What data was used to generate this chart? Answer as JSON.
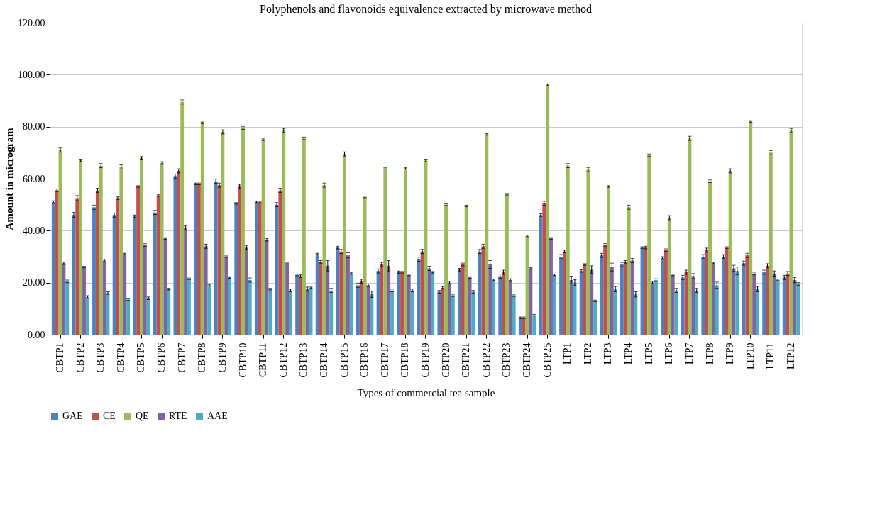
{
  "chart_data": {
    "type": "bar",
    "title": "Polyphenols and flavonoids equivalence extracted by microwave method",
    "xlabel": "Types of commercial tea sample",
    "ylabel": "Amount in microgram",
    "categories": [
      "CBTP1",
      "CBTP2",
      "CBTP3",
      "CBTP4",
      "CBTP5",
      "CBTP6",
      "CBTP7",
      "CBTP8",
      "CBTP9",
      "CBTP10",
      "CBTP11",
      "CBTP12",
      "CBTP13",
      "CBTP14",
      "CBTP15",
      "CBTP16",
      "CBTP17",
      "CBTP18",
      "CBTP19",
      "CBTP20",
      "CBTP21",
      "CBTP22",
      "CBTP23",
      "CBTP24",
      "CBTP25",
      "LTP1",
      "LTP2",
      "LTP3",
      "LTP4",
      "LTP5",
      "LTP6",
      "LTP7",
      "LTP8",
      "LTP9",
      "LTP10",
      "LTP11",
      "LTP12"
    ],
    "series": [
      {
        "name": "GAE",
        "color": "#4f81bd",
        "values": [
          51,
          46,
          49,
          46,
          45.5,
          47,
          61,
          58,
          59,
          50.5,
          51,
          50,
          23,
          31,
          33.5,
          19,
          24.5,
          24,
          29,
          16.5,
          25,
          32,
          22.5,
          6.5,
          46,
          30,
          24.5,
          30.5,
          27,
          33.5,
          29.5,
          22,
          30,
          30,
          27.5,
          24,
          22
        ],
        "errors": [
          0.5,
          1,
          0.8,
          0.8,
          0.5,
          0.8,
          0.8,
          0.3,
          0.8,
          0.3,
          0.3,
          0.8,
          0.3,
          0.3,
          0.5,
          0.8,
          0.8,
          0.5,
          0.8,
          0.5,
          0.5,
          0.8,
          0.8,
          0.3,
          0.5,
          0.8,
          0.5,
          0.8,
          0.8,
          0.3,
          0.5,
          0.8,
          0.8,
          0.8,
          0.8,
          0.8,
          0.8
        ]
      },
      {
        "name": "CE",
        "color": "#c0504d",
        "values": [
          55.5,
          52.5,
          55.5,
          52.5,
          57,
          53.5,
          63,
          58,
          57.5,
          57,
          51,
          55.5,
          22.5,
          28,
          32,
          20.5,
          27,
          24,
          32,
          18,
          27,
          34,
          24,
          6.5,
          50.5,
          32,
          27,
          34.5,
          28,
          33.5,
          32.5,
          24,
          32.5,
          33.5,
          30.5,
          26.5,
          23.5
        ],
        "errors": [
          0.5,
          1,
          0.8,
          0.5,
          0.3,
          0.3,
          0.8,
          0.3,
          0.8,
          0.8,
          0.3,
          0.8,
          0.5,
          0.5,
          0.8,
          0.8,
          0.8,
          0.3,
          0.8,
          0.5,
          0.5,
          0.8,
          0.8,
          0.3,
          0.8,
          0.5,
          0.3,
          0.5,
          0.5,
          0.5,
          0.5,
          0.8,
          0.8,
          0.3,
          0.8,
          0.8,
          0.8
        ]
      },
      {
        "name": "QE",
        "color": "#9bbb59",
        "values": [
          71,
          67,
          65,
          64.5,
          68,
          66,
          89.5,
          81.5,
          78,
          79.5,
          75,
          78.5,
          75.5,
          57.5,
          69.5,
          53,
          64,
          64,
          67,
          50,
          49.5,
          77,
          54,
          38,
          96,
          65,
          63.5,
          57,
          49,
          69,
          45,
          75.5,
          59,
          63,
          82,
          70,
          78.5
        ],
        "errors": [
          0.8,
          0.5,
          0.8,
          0.8,
          0.5,
          0.5,
          0.8,
          0.3,
          0.8,
          0.5,
          0.3,
          0.8,
          0.5,
          0.8,
          0.8,
          0.3,
          0.3,
          0.3,
          0.5,
          0.3,
          0.3,
          0.3,
          0.3,
          0.3,
          0.3,
          0.8,
          0.8,
          0.3,
          0.8,
          0.5,
          0.8,
          0.8,
          0.5,
          0.8,
          0.3,
          0.8,
          0.8
        ]
      },
      {
        "name": "RTE",
        "color": "#8064a2",
        "values": [
          27.5,
          26,
          28.5,
          31,
          34.5,
          37,
          41,
          34,
          30,
          33.5,
          36.5,
          27.5,
          17.5,
          26.5,
          30.5,
          19,
          26.5,
          23,
          25.5,
          20,
          22,
          27,
          21,
          25.5,
          37.5,
          21,
          25,
          26,
          28.5,
          20,
          23,
          22.5,
          27.5,
          25.5,
          23.5,
          23.5,
          21
        ],
        "errors": [
          0.5,
          0.3,
          0.5,
          0.3,
          0.5,
          0.3,
          0.8,
          0.8,
          0.3,
          0.8,
          0.5,
          0.3,
          0.8,
          2,
          1,
          0.5,
          2,
          0.3,
          0.8,
          0.5,
          0.3,
          1.5,
          0.5,
          0.3,
          0.8,
          1.5,
          1.5,
          1.5,
          0.8,
          0.5,
          0.3,
          1,
          0.3,
          1.2,
          0.5,
          1,
          1
        ]
      },
      {
        "name": "AAE",
        "color": "#4bacc6",
        "values": [
          20.5,
          14.5,
          16,
          13.5,
          14,
          17.5,
          21.5,
          19,
          22,
          21,
          17.5,
          17,
          18,
          17,
          23.5,
          15.5,
          17,
          17,
          24,
          15,
          16.5,
          21,
          15,
          7.5,
          23,
          20,
          13,
          17.5,
          15.5,
          21,
          17,
          17,
          19,
          24.5,
          17.5,
          21,
          19.5
        ],
        "errors": [
          0.5,
          0.5,
          0.5,
          0.3,
          0.5,
          0.3,
          0.3,
          0.3,
          0.3,
          0.8,
          0.3,
          0.5,
          0.3,
          0.8,
          0.3,
          1.2,
          0.5,
          0.5,
          0.3,
          0.3,
          0.5,
          0.3,
          0.3,
          0.3,
          0.3,
          1.2,
          0.3,
          1,
          1,
          0.5,
          0.8,
          0.8,
          1.2,
          1.5,
          1,
          0.3,
          0.5
        ]
      }
    ],
    "ylim": [
      0,
      120
    ],
    "yticks": [
      {
        "value": 0,
        "label": "0.00"
      },
      {
        "value": 20,
        "label": "20.00"
      },
      {
        "value": 40,
        "label": "40.00"
      },
      {
        "value": 60,
        "label": "60.00"
      },
      {
        "value": 80,
        "label": "80.00"
      },
      {
        "value": 100,
        "label": "100.00"
      },
      {
        "value": 120,
        "label": "120.00"
      }
    ],
    "grid": "y",
    "legend": "bottom"
  }
}
